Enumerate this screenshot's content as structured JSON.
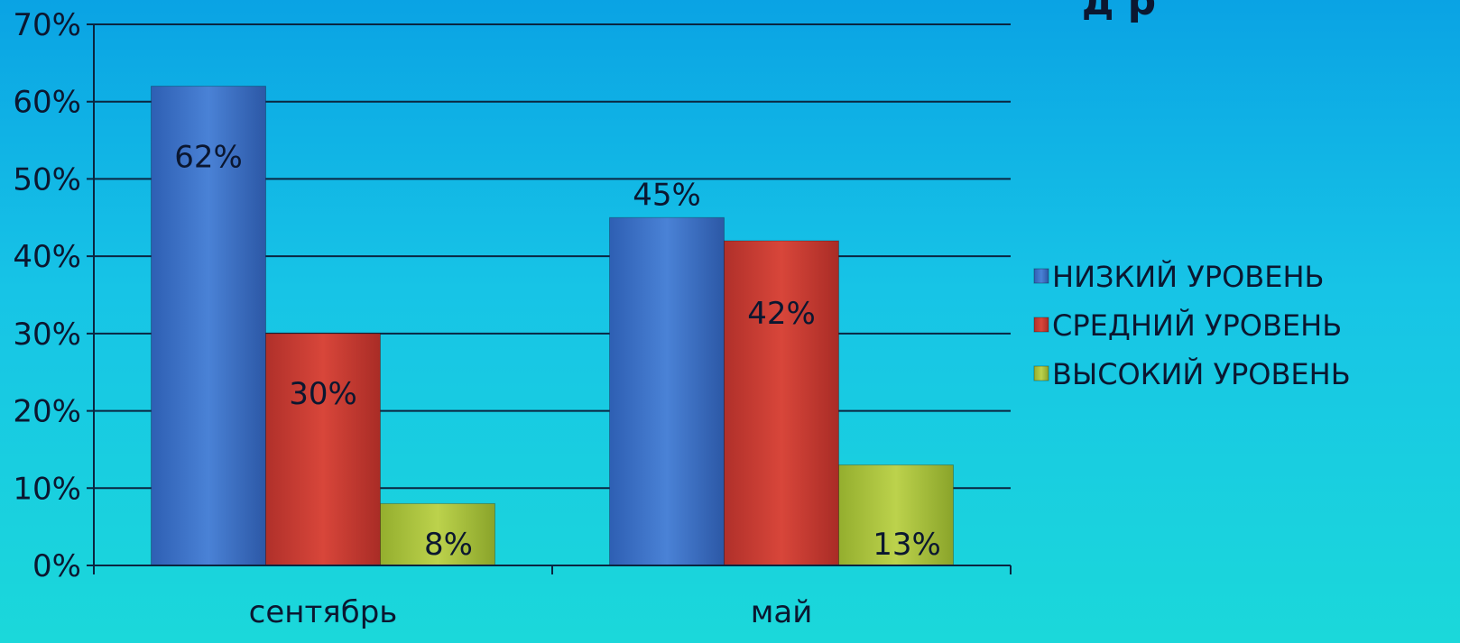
{
  "chart_data": {
    "type": "bar",
    "title_fragment": "д р",
    "categories": [
      "сентябрь",
      "май"
    ],
    "series": [
      {
        "name": "НИЗКИЙ УРОВЕНЬ",
        "values": [
          62,
          45
        ],
        "color": "#3a6fc4",
        "labels": [
          "62%",
          "45%"
        ]
      },
      {
        "name": "СРЕДНИЙ УРОВЕНЬ",
        "values": [
          30,
          42
        ],
        "color": "#c93a30",
        "labels": [
          "30%",
          "42%"
        ]
      },
      {
        "name": "ВЫСОКИЙ УРОВЕНЬ",
        "values": [
          8,
          13
        ],
        "color": "#a8c23c",
        "labels": [
          "8%",
          "13%"
        ]
      }
    ],
    "ylim": [
      0,
      70
    ],
    "yticks": [
      "0%",
      "10%",
      "20%",
      "30%",
      "40%",
      "50%",
      "60%",
      "70%"
    ],
    "grid": true,
    "legend_position": "right"
  }
}
